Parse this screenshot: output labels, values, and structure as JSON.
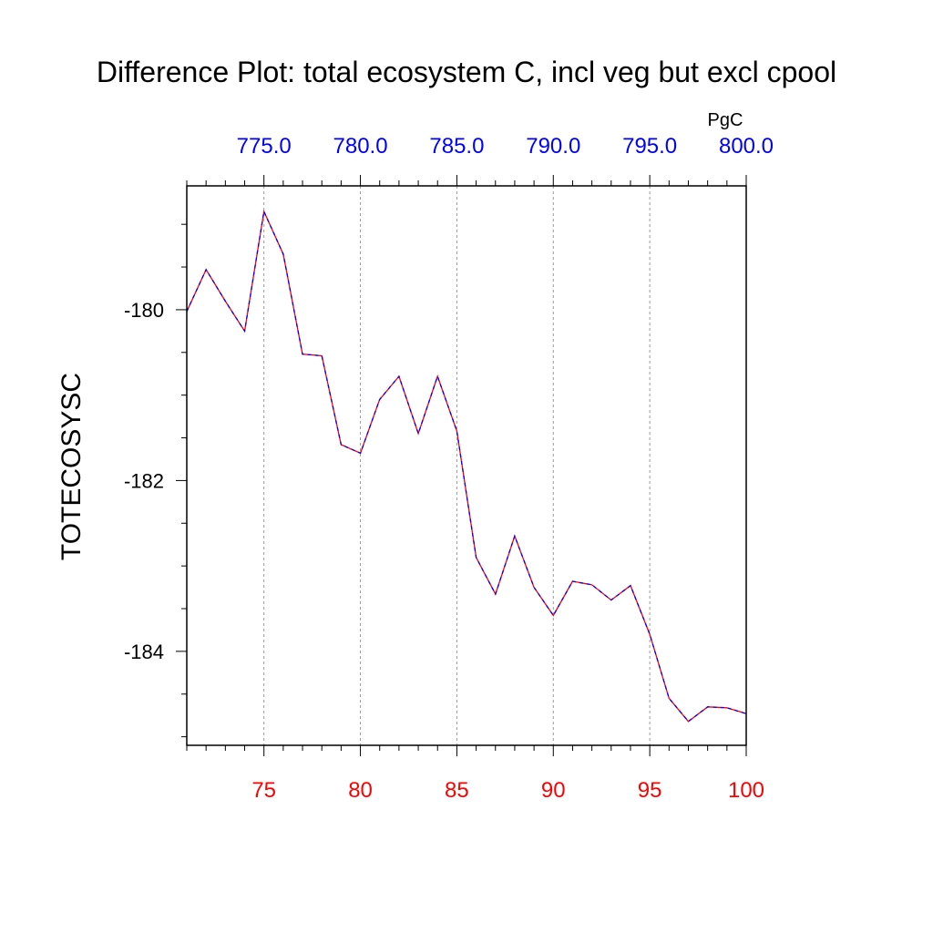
{
  "colors": {
    "bottom_axis": "#ff0000",
    "top_axis": "#0000ff",
    "line_a": "#ff0000",
    "line_b": "#0000ff",
    "grid": "#999999",
    "frame": "#000000"
  },
  "chart_data": {
    "type": "line",
    "title": "Difference Plot: total ecosystem C, incl veg but excl cpool",
    "ylabel": "TOTECOSYSC",
    "top_units": "PgC",
    "xlim": [
      71,
      100
    ],
    "ylim": [
      -185.1,
      -178.55
    ],
    "x_ticks": [
      75,
      80,
      85,
      90,
      95,
      100
    ],
    "x_tick_labels": [
      "75",
      "80",
      "85",
      "90",
      "95",
      "100"
    ],
    "top_tick_labels": [
      "775.0",
      "780.0",
      "785.0",
      "790.0",
      "795.0",
      "800.0"
    ],
    "y_ticks": [
      -180,
      -182,
      -184
    ],
    "y_tick_labels": [
      "-180",
      "-182",
      "-184"
    ],
    "x_grid": [
      75,
      80,
      85,
      90,
      95
    ],
    "x": [
      71,
      72,
      73,
      74,
      75,
      76,
      77,
      78,
      79,
      80,
      81,
      82,
      83,
      84,
      85,
      86,
      87,
      88,
      89,
      90,
      91,
      92,
      93,
      94,
      95,
      96,
      97,
      98,
      99,
      100
    ],
    "series": [
      {
        "values": [
          -180.02,
          -179.53,
          -179.9,
          -180.25,
          -178.85,
          -179.35,
          -180.52,
          -180.54,
          -181.58,
          -181.68,
          -181.05,
          -180.78,
          -181.45,
          -180.78,
          -181.42,
          -182.9,
          -183.33,
          -182.65,
          -183.25,
          -183.58,
          -183.18,
          -183.22,
          -183.4,
          -183.23,
          -183.8,
          -184.55,
          -184.82,
          -184.65,
          -184.66,
          -184.73
        ]
      }
    ]
  }
}
